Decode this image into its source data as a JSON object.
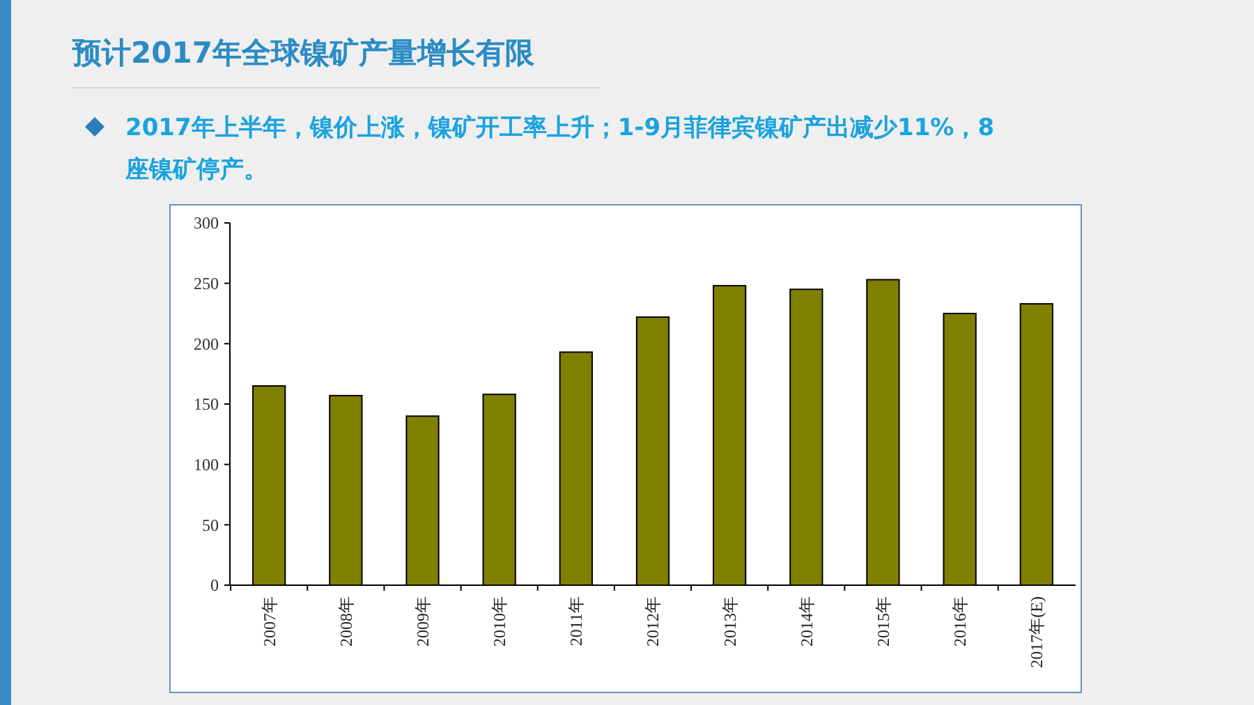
{
  "chart_data": {
    "type": "bar",
    "title": "预计2017年全球镍矿产量增长有限",
    "subtitle": "2017年上半年，镍价上涨，镍矿开工率上升；1-9月菲律宾镍矿产出减少11%，8座镍矿停产。",
    "categories": [
      "2007年",
      "2008年",
      "2009年",
      "2010年",
      "2011年",
      "2012年",
      "2013年",
      "2014年",
      "2015年",
      "2016年",
      "2017年(E)"
    ],
    "values": [
      165,
      157,
      140,
      158,
      193,
      222,
      248,
      245,
      253,
      225,
      233
    ],
    "color": "#808000",
    "ylim": [
      0,
      300
    ],
    "yticks": [
      0,
      50,
      100,
      150,
      200,
      250,
      300
    ],
    "grid": false
  }
}
